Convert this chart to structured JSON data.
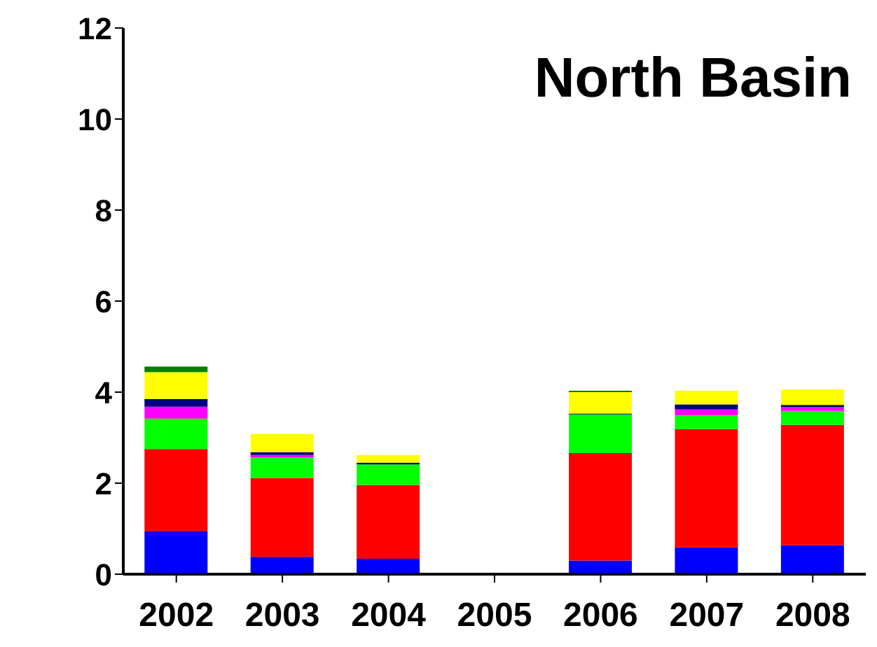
{
  "chart_data": {
    "type": "bar",
    "title": "North Basin",
    "stacked": true,
    "legend": false,
    "grid": false,
    "categories": [
      "2002",
      "2003",
      "2004",
      "2005",
      "2006",
      "2007",
      "2008"
    ],
    "ylim": [
      0,
      12
    ],
    "yticks": [
      0,
      2,
      4,
      6,
      8,
      10,
      12
    ],
    "series": [
      {
        "color": "#0000ff",
        "values": [
          0.95,
          0.38,
          0.34,
          null,
          0.3,
          0.59,
          0.64
        ]
      },
      {
        "color": "#ff0000",
        "values": [
          1.8,
          1.73,
          1.62,
          null,
          2.36,
          2.6,
          2.64
        ]
      },
      {
        "color": "#00ff00",
        "values": [
          0.67,
          0.45,
          0.45,
          null,
          0.85,
          0.3,
          0.31
        ]
      },
      {
        "color": "#ff00ff",
        "values": [
          0.26,
          0.06,
          0,
          null,
          0,
          0.13,
          0.08
        ]
      },
      {
        "color": "#000080",
        "values": [
          0.17,
          0.06,
          0.04,
          null,
          0.02,
          0.11,
          0.05
        ]
      },
      {
        "color": "#ffff00",
        "values": [
          0.59,
          0.4,
          0.17,
          null,
          0.47,
          0.3,
          0.34
        ]
      },
      {
        "color": "#008000",
        "values": [
          0.12,
          0,
          0,
          null,
          0.03,
          0,
          0
        ]
      }
    ]
  }
}
